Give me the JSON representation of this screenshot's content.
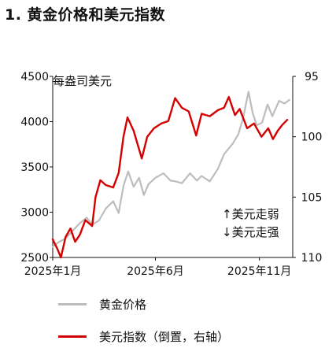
{
  "chart_data": {
    "type": "line",
    "title": "1. 黄金价格和美元指数",
    "left_axis_label": "每盎司美元",
    "direction_note_up": "↑美元走弱",
    "direction_note_down": "↓美元走强",
    "left_axis": {
      "min": 2500,
      "max": 4500,
      "ticks": [
        "4500",
        "4000",
        "3500",
        "3000",
        "2500"
      ]
    },
    "right_axis": {
      "min": 95,
      "max": 110,
      "inverted": true,
      "ticks": [
        "95",
        "100",
        "105",
        "110"
      ]
    },
    "x_axis": {
      "start": "2025-01-01",
      "end": "2025-12-20",
      "tick_labels": [
        {
          "date": "2025-01-01",
          "label": "2025年1月"
        },
        {
          "date": "2025-06-01",
          "label": "2025年6月"
        },
        {
          "date": "2025-11-01",
          "label": "2025年11月"
        }
      ]
    },
    "series": [
      {
        "name": "黄金价格",
        "axis": "left",
        "color": "#bdbdbd",
        "points": [
          [
            "2025-01-01",
            2620
          ],
          [
            "2025-01-10",
            2670
          ],
          [
            "2025-01-20",
            2710
          ],
          [
            "2025-01-31",
            2800
          ],
          [
            "2025-02-10",
            2880
          ],
          [
            "2025-02-20",
            2940
          ],
          [
            "2025-02-28",
            2860
          ],
          [
            "2025-03-10",
            2910
          ],
          [
            "2025-03-20",
            3040
          ],
          [
            "2025-03-31",
            3120
          ],
          [
            "2025-04-08",
            2990
          ],
          [
            "2025-04-15",
            3290
          ],
          [
            "2025-04-22",
            3450
          ],
          [
            "2025-04-30",
            3280
          ],
          [
            "2025-05-08",
            3380
          ],
          [
            "2025-05-15",
            3190
          ],
          [
            "2025-05-22",
            3310
          ],
          [
            "2025-06-01",
            3380
          ],
          [
            "2025-06-13",
            3430
          ],
          [
            "2025-06-23",
            3350
          ],
          [
            "2025-07-01",
            3340
          ],
          [
            "2025-07-10",
            3320
          ],
          [
            "2025-07-22",
            3430
          ],
          [
            "2025-08-01",
            3350
          ],
          [
            "2025-08-08",
            3400
          ],
          [
            "2025-08-20",
            3340
          ],
          [
            "2025-09-01",
            3480
          ],
          [
            "2025-09-10",
            3640
          ],
          [
            "2025-09-23",
            3760
          ],
          [
            "2025-10-01",
            3860
          ],
          [
            "2025-10-08",
            4040
          ],
          [
            "2025-10-16",
            4330
          ],
          [
            "2025-10-22",
            4100
          ],
          [
            "2025-10-28",
            3960
          ],
          [
            "2025-11-05",
            3990
          ],
          [
            "2025-11-13",
            4190
          ],
          [
            "2025-11-20",
            4060
          ],
          [
            "2025-11-30",
            4230
          ],
          [
            "2025-12-08",
            4200
          ],
          [
            "2025-12-15",
            4240
          ]
        ]
      },
      {
        "name": "美元指数（倒置，右轴）",
        "axis": "right",
        "color": "#d40000",
        "points": [
          [
            "2025-01-01",
            108.5
          ],
          [
            "2025-01-08",
            109.3
          ],
          [
            "2025-01-13",
            110.0
          ],
          [
            "2025-01-20",
            108.3
          ],
          [
            "2025-01-27",
            107.6
          ],
          [
            "2025-02-03",
            108.7
          ],
          [
            "2025-02-10",
            108.1
          ],
          [
            "2025-02-18",
            106.9
          ],
          [
            "2025-02-28",
            107.4
          ],
          [
            "2025-03-05",
            105.0
          ],
          [
            "2025-03-12",
            103.6
          ],
          [
            "2025-03-20",
            104.0
          ],
          [
            "2025-03-31",
            104.2
          ],
          [
            "2025-04-08",
            103.0
          ],
          [
            "2025-04-15",
            100.0
          ],
          [
            "2025-04-21",
            98.4
          ],
          [
            "2025-04-30",
            99.5
          ],
          [
            "2025-05-12",
            101.8
          ],
          [
            "2025-05-20",
            100.0
          ],
          [
            "2025-05-30",
            99.3
          ],
          [
            "2025-06-10",
            98.9
          ],
          [
            "2025-06-20",
            98.7
          ],
          [
            "2025-06-30",
            96.8
          ],
          [
            "2025-07-10",
            97.6
          ],
          [
            "2025-07-20",
            97.9
          ],
          [
            "2025-07-31",
            99.9
          ],
          [
            "2025-08-08",
            98.1
          ],
          [
            "2025-08-20",
            98.3
          ],
          [
            "2025-09-01",
            97.8
          ],
          [
            "2025-09-10",
            97.6
          ],
          [
            "2025-09-17",
            96.7
          ],
          [
            "2025-09-26",
            98.2
          ],
          [
            "2025-10-03",
            97.7
          ],
          [
            "2025-10-14",
            99.3
          ],
          [
            "2025-10-24",
            98.9
          ],
          [
            "2025-11-04",
            100.0
          ],
          [
            "2025-11-14",
            99.3
          ],
          [
            "2025-11-21",
            100.2
          ],
          [
            "2025-11-28",
            99.5
          ],
          [
            "2025-12-05",
            99.0
          ],
          [
            "2025-12-12",
            98.6
          ]
        ]
      }
    ]
  }
}
